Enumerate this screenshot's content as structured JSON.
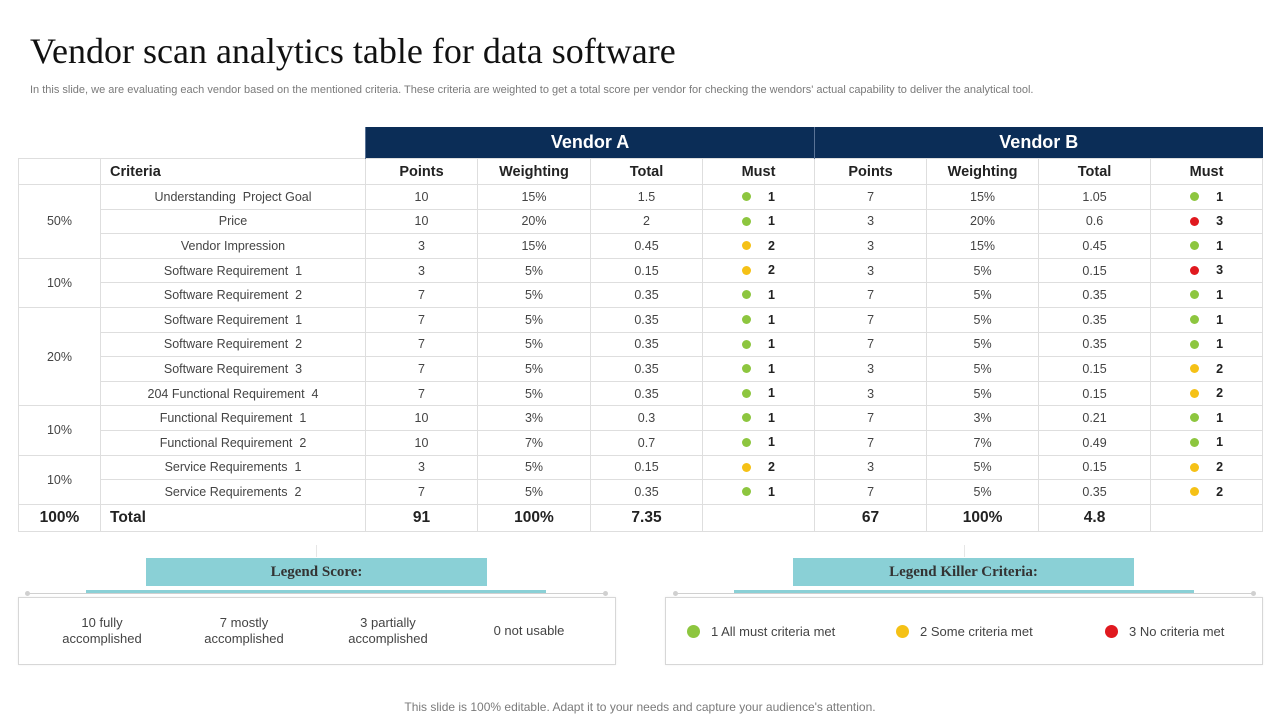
{
  "title": "Vendor scan analytics table for data software",
  "subtitle": "In this slide, we are evaluating each vendor based on the mentioned criteria. These criteria are weighted to get a total score per vendor for checking the wendors' actual capability to deliver the analytical tool.",
  "colors": {
    "green": "#8dc63f",
    "yellow": "#f5c116",
    "red": "#e0191f",
    "header": "#0b2d57",
    "legend": "#8ad0d6"
  },
  "table": {
    "vendor_a": "Vendor A",
    "vendor_b": "Vendor B",
    "headers": {
      "criteria": "Criteria",
      "points": "Points",
      "weighting": "Weighting",
      "total": "Total",
      "must": "Must"
    },
    "groups": [
      {
        "label": "50%",
        "rows": [
          {
            "criteria": "Understanding  Project Goal",
            "a": [
              "10",
              "15%",
              "1.5",
              "1"
            ],
            "b": [
              "7",
              "15%",
              "1.05",
              "1"
            ]
          },
          {
            "criteria": "Price",
            "a": [
              "10",
              "20%",
              "2",
              "1"
            ],
            "b": [
              "3",
              "20%",
              "0.6",
              "3"
            ]
          },
          {
            "criteria": "Vendor Impression",
            "a": [
              "3",
              "15%",
              "0.45",
              "2"
            ],
            "b": [
              "3",
              "15%",
              "0.45",
              "1"
            ]
          }
        ]
      },
      {
        "label": "10%",
        "rows": [
          {
            "criteria": "Software Requirement  1",
            "a": [
              "3",
              "5%",
              "0.15",
              "2"
            ],
            "b": [
              "3",
              "5%",
              "0.15",
              "3"
            ]
          },
          {
            "criteria": "Software Requirement  2",
            "a": [
              "7",
              "5%",
              "0.35",
              "1"
            ],
            "b": [
              "7",
              "5%",
              "0.35",
              "1"
            ]
          }
        ]
      },
      {
        "label": "20%",
        "rows": [
          {
            "criteria": "Software Requirement  1",
            "a": [
              "7",
              "5%",
              "0.35",
              "1"
            ],
            "b": [
              "7",
              "5%",
              "0.35",
              "1"
            ]
          },
          {
            "criteria": "Software Requirement  2",
            "a": [
              "7",
              "5%",
              "0.35",
              "1"
            ],
            "b": [
              "7",
              "5%",
              "0.35",
              "1"
            ]
          },
          {
            "criteria": "Software Requirement  3",
            "a": [
              "7",
              "5%",
              "0.35",
              "1"
            ],
            "b": [
              "3",
              "5%",
              "0.15",
              "2"
            ]
          },
          {
            "criteria": "204 Functional Requirement  4",
            "a": [
              "7",
              "5%",
              "0.35",
              "1"
            ],
            "b": [
              "3",
              "5%",
              "0.15",
              "2"
            ]
          }
        ]
      },
      {
        "label": "10%",
        "rows": [
          {
            "criteria": "Functional Requirement  1",
            "a": [
              "10",
              "3%",
              "0.3",
              "1"
            ],
            "b": [
              "7",
              "3%",
              "0.21",
              "1"
            ]
          },
          {
            "criteria": "Functional Requirement  2",
            "a": [
              "10",
              "7%",
              "0.7",
              "1"
            ],
            "b": [
              "7",
              "7%",
              "0.49",
              "1"
            ]
          }
        ]
      },
      {
        "label": "10%",
        "rows": [
          {
            "criteria": "Service Requirements  1",
            "a": [
              "3",
              "5%",
              "0.15",
              "2"
            ],
            "b": [
              "3",
              "5%",
              "0.15",
              "2"
            ]
          },
          {
            "criteria": "Service Requirements  2",
            "a": [
              "7",
              "5%",
              "0.35",
              "1"
            ],
            "b": [
              "7",
              "5%",
              "0.35",
              "2"
            ]
          }
        ]
      }
    ],
    "totals": {
      "weight": "100%",
      "label": "Total",
      "a": [
        "91",
        "100%",
        "7.35"
      ],
      "b": [
        "67",
        "100%",
        "4.8"
      ]
    }
  },
  "legend_score": {
    "title": "Legend Score:",
    "items": [
      "10 fully accomplished",
      "7 mostly accomplished",
      "3 partially accomplished",
      "0 not usable"
    ]
  },
  "legend_killer": {
    "title": "Legend Killer Criteria:",
    "items": [
      {
        "text": "1 All must criteria met",
        "color": "green"
      },
      {
        "text": "2 Some criteria met",
        "color": "yellow"
      },
      {
        "text": "3 No criteria met",
        "color": "red"
      }
    ]
  },
  "footer": "This slide is 100% editable. Adapt it to your needs and capture your audience's attention."
}
